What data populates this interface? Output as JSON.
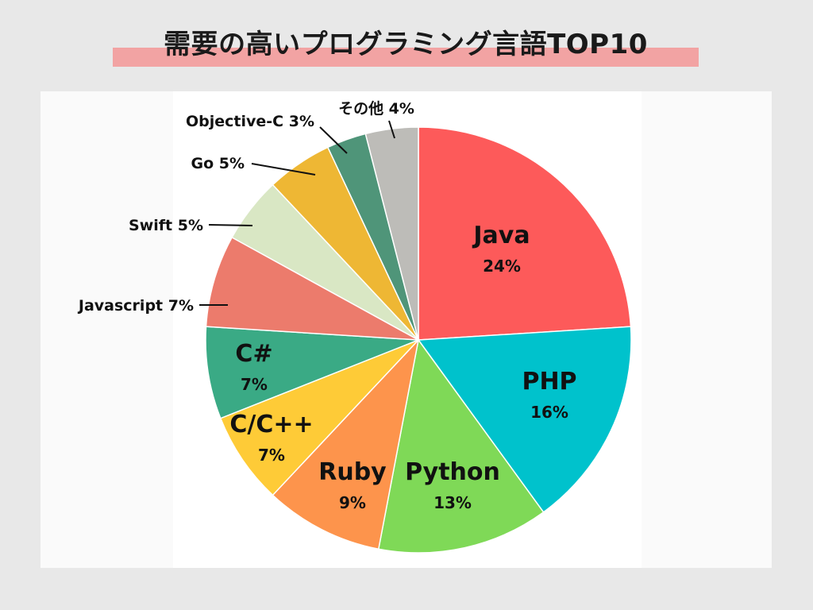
{
  "header": {
    "title": "需要の高いプログラミング言語TOP10"
  },
  "colors": {
    "background": "#e8e8e8",
    "title_highlight": "#f2a3a3"
  },
  "chart_data": {
    "type": "pie",
    "title": "需要の高いプログラミング言語TOP10",
    "unit": "%",
    "slices": [
      {
        "name": "Java",
        "value": 24,
        "label": "24%",
        "color": "#fd5a5a"
      },
      {
        "name": "PHP",
        "value": 16,
        "label": "16%",
        "color": "#00c2cc"
      },
      {
        "name": "Python",
        "value": 13,
        "label": "13%",
        "color": "#7fd957"
      },
      {
        "name": "Ruby",
        "value": 9,
        "label": "9%",
        "color": "#fd944c"
      },
      {
        "name": "C/C++",
        "value": 7,
        "label": "7%",
        "color": "#fecb37"
      },
      {
        "name": "C#",
        "value": 7,
        "label": "7%",
        "color": "#3aaa85"
      },
      {
        "name": "Javascript",
        "value": 7,
        "label": "7%",
        "color": "#ec7b6c"
      },
      {
        "name": "Swift",
        "value": 5,
        "label": "5%",
        "color": "#d9e7c4"
      },
      {
        "name": "Go",
        "value": 5,
        "label": "5%",
        "color": "#eeb734"
      },
      {
        "name": "Objective-C",
        "value": 3,
        "label": "3%",
        "color": "#4f9579"
      },
      {
        "name": "その他",
        "value": 4,
        "label": "4%",
        "color": "#bdbcb8"
      }
    ],
    "start": "top",
    "direction": "clockwise"
  }
}
